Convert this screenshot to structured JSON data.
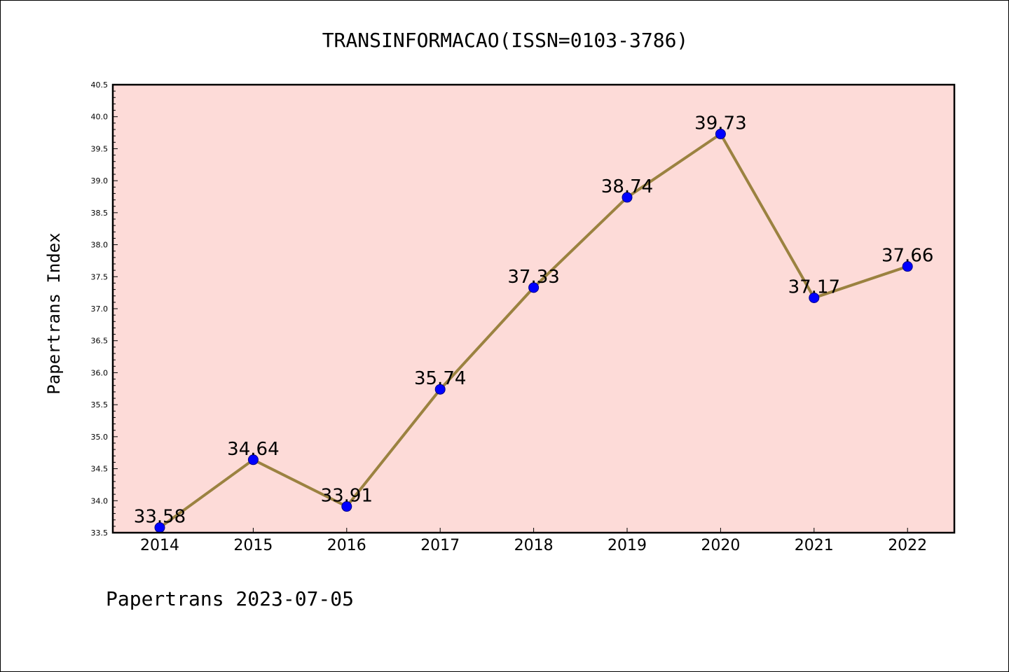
{
  "chart_data": {
    "type": "line",
    "title": "TRANSINFORMACAO(ISSN=0103-3786)",
    "ylabel": "Papertrans Index",
    "xlabel": "",
    "categories": [
      "2014",
      "2015",
      "2016",
      "2017",
      "2018",
      "2019",
      "2020",
      "2021",
      "2022"
    ],
    "series": [
      {
        "values": [
          33.58,
          34.64,
          33.91,
          35.74,
          37.33,
          38.74,
          39.73,
          37.17,
          37.66
        ],
        "data_labels": [
          "33.58",
          "34.64",
          "33.91",
          "35.74",
          "37.33",
          "38.74",
          "39.73",
          "37.17",
          "37.66"
        ]
      }
    ],
    "ylim": [
      33.5,
      40.5
    ],
    "yticks": [
      "33.5",
      "34.0",
      "34.5",
      "35.0",
      "35.5",
      "36.0",
      "36.5",
      "37.0",
      "37.5",
      "38.0",
      "38.5",
      "39.0",
      "39.5",
      "40.0",
      "40.5"
    ],
    "grid": false,
    "legend": "none",
    "colors": {
      "plot_background": "#fddbd8",
      "line": "#9b8240",
      "marker": "#0000ff"
    }
  },
  "footer": {
    "text": "Papertrans 2023-07-05"
  }
}
